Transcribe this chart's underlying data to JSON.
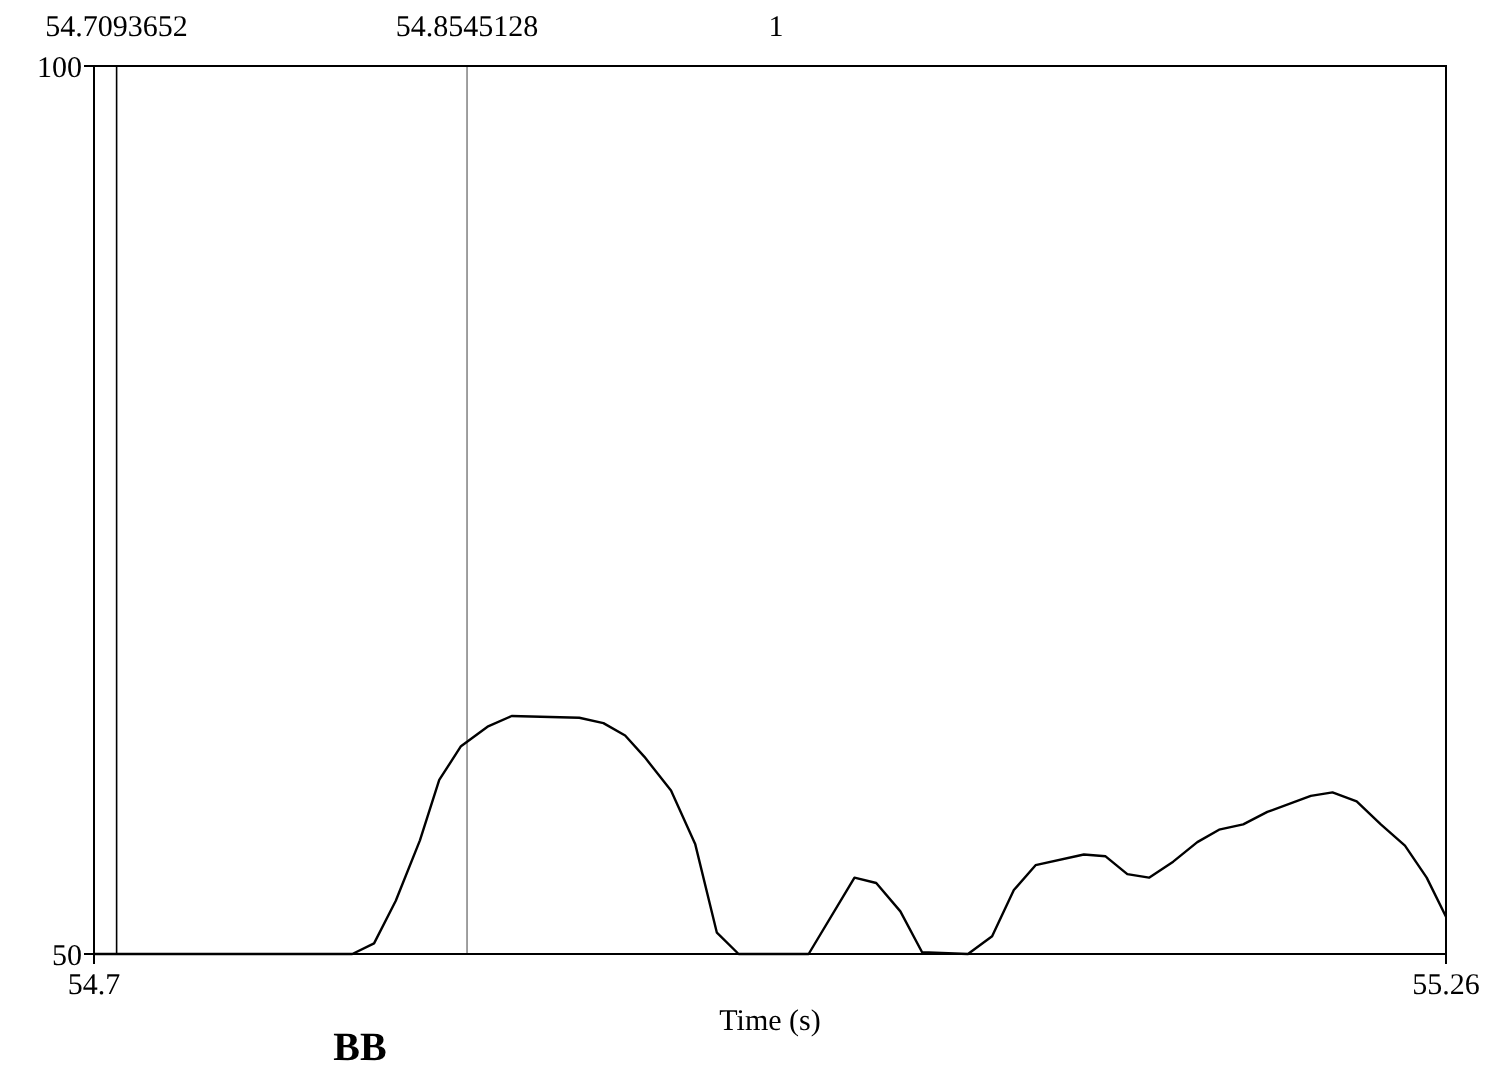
{
  "chart_data": {
    "type": "line",
    "xlabel": "Time (s)",
    "annotations": [
      "1",
      "BB"
    ],
    "x": [
      54.7,
      54.807,
      54.816,
      54.825,
      54.835,
      54.843,
      54.852,
      54.863,
      54.873,
      54.901,
      54.911,
      54.92,
      54.928,
      54.939,
      54.949,
      54.958,
      54.967,
      54.996,
      55.015,
      55.024,
      55.034,
      55.043,
      55.062,
      55.072,
      55.081,
      55.09,
      55.11,
      55.119,
      55.128,
      55.137,
      55.147,
      55.157,
      55.166,
      55.176,
      55.186,
      55.204,
      55.213,
      55.223,
      55.233,
      55.243,
      55.252,
      55.26
    ],
    "series": [
      {
        "color": "#000000",
        "values": [
          50,
          50,
          50.6,
          53,
          56.4,
          59.8,
          61.7,
          62.8,
          63.4,
          63.3,
          63,
          62.3,
          61.1,
          59.2,
          56.2,
          51.2,
          50,
          50,
          54.3,
          54,
          52.4,
          50.1,
          50,
          51,
          53.6,
          55,
          55.6,
          55.5,
          54.5,
          54.3,
          55.2,
          56.3,
          57,
          57.3,
          58,
          58.9,
          59.1,
          58.6,
          57.3,
          56.1,
          54.3,
          52.1
        ]
      }
    ],
    "xlim": [
      54.7,
      55.26
    ],
    "ylim": [
      50,
      100
    ],
    "xticks": [
      54.7,
      55.26
    ],
    "yticks": [
      50,
      100
    ],
    "marker": "none",
    "line_style": "solid",
    "ref_lines": [
      {
        "axis": "x",
        "value": 54.7093652,
        "label": "54.7093652",
        "color": "#000000"
      },
      {
        "axis": "x",
        "value": 54.8545128,
        "label": "54.8545128",
        "color": "#888888"
      }
    ]
  }
}
